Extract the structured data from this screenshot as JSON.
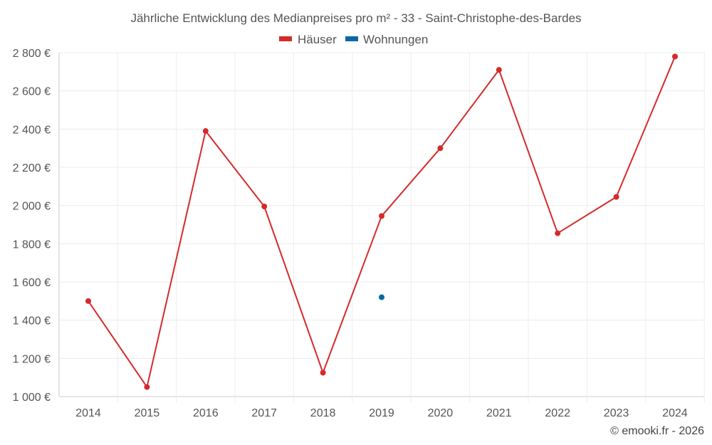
{
  "chart_data": {
    "type": "line",
    "title": "Jährliche Entwicklung des Medianpreises pro m² - 33 - Saint-Christophe-des-Bardes",
    "categories": [
      "2014",
      "2015",
      "2016",
      "2017",
      "2018",
      "2019",
      "2020",
      "2021",
      "2022",
      "2023",
      "2024"
    ],
    "series": [
      {
        "name": "Häuser",
        "color": "#d42a2a",
        "values": [
          1500,
          1050,
          2390,
          1995,
          1125,
          1945,
          2300,
          2710,
          1855,
          2045,
          2780
        ]
      },
      {
        "name": "Wohnungen",
        "color": "#0868a6",
        "values": [
          null,
          null,
          null,
          null,
          null,
          1520,
          null,
          null,
          null,
          null,
          null
        ]
      }
    ],
    "ylim": [
      1000,
      2800
    ],
    "yticks": [
      1000,
      1200,
      1400,
      1600,
      1800,
      2000,
      2200,
      2400,
      2600,
      2800
    ],
    "ytick_labels": [
      "1 000 €",
      "1 200 €",
      "1 400 €",
      "1 600 €",
      "1 800 €",
      "2 000 €",
      "2 200 €",
      "2 400 €",
      "2 600 €",
      "2 800 €"
    ],
    "xlabel": "",
    "ylabel": "",
    "grid": true,
    "legend_position": "top-center"
  },
  "credit": "© emooki.fr - 2026"
}
